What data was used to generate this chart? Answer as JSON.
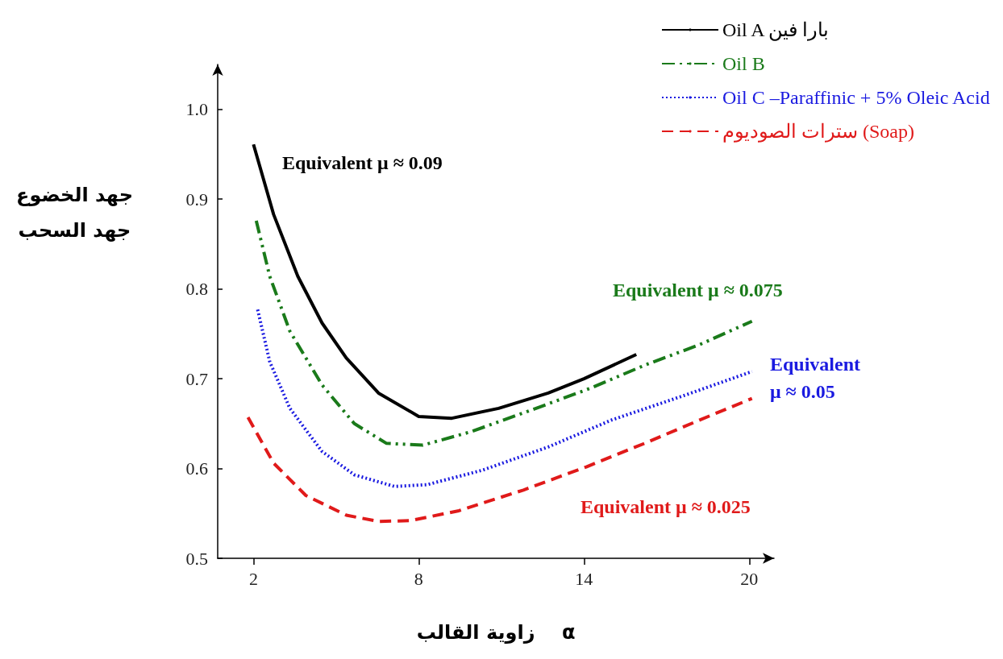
{
  "chart_data": {
    "type": "line",
    "xlabel": "زاوية القالب    α",
    "ylabel": "جهد الخضوع\nجهد السحب",
    "xlim": [
      0.7,
      20.9
    ],
    "ylim": [
      0.5,
      1.05
    ],
    "xticks": [
      2,
      8,
      14,
      20
    ],
    "yticks": [
      0.5,
      0.6,
      0.7,
      0.8,
      0.9,
      {
        "value": 1,
        "label": "1.0"
      }
    ],
    "grid": false,
    "legend": "top right",
    "marker": "none",
    "series": [
      {
        "name": "Oil A بارا فين",
        "color": "#000000",
        "line_style": "solid",
        "x": [
          2,
          2.73,
          3.61,
          4.49,
          5.37,
          6.54,
          8,
          9.2,
          10.9,
          12.7,
          14,
          15.9
        ],
        "values": [
          0.961,
          0.883,
          0.814,
          0.762,
          0.723,
          0.684,
          0.658,
          0.656,
          0.667,
          0.684,
          0.7,
          0.727
        ]
      },
      {
        "name": "Oil B",
        "color": "#1a7a1a",
        "line_style": "dashdot",
        "x": [
          2.1,
          2.59,
          3.32,
          4.49,
          5.66,
          6.83,
          8.15,
          9.9,
          11.9,
          14.2,
          16.2,
          18.2,
          20.1
        ],
        "values": [
          0.876,
          0.814,
          0.753,
          0.693,
          0.65,
          0.628,
          0.626,
          0.641,
          0.663,
          0.689,
          0.715,
          0.738,
          0.764
        ]
      },
      {
        "name": "Oil C –Paraffinic + 5% Oleic Acid",
        "color": "#1a1ae0",
        "line_style": "dotted",
        "x": [
          2.15,
          2.59,
          3.32,
          4.49,
          5.66,
          7.12,
          8.3,
          10.3,
          12.7,
          15,
          17.7,
          20.1
        ],
        "values": [
          0.777,
          0.719,
          0.667,
          0.619,
          0.593,
          0.58,
          0.582,
          0.598,
          0.624,
          0.654,
          0.682,
          0.708
        ]
      },
      {
        "name": "سترات الصوديوم (Soap)",
        "color": "#e01a1a",
        "line_style": "dashed",
        "x": [
          1.8,
          2.73,
          3.9,
          5.37,
          6.54,
          7.7,
          9.46,
          11.8,
          14.1,
          16.2,
          18.2,
          20.1
        ],
        "values": [
          0.657,
          0.606,
          0.57,
          0.548,
          0.541,
          0.542,
          0.553,
          0.576,
          0.602,
          0.628,
          0.654,
          0.678
        ]
      }
    ],
    "annotations": [
      "Equivalent μ ≈ 0.09",
      "Equivalent μ ≈ 0.075",
      "Equivalent\nμ ≈ 0.05",
      "Equivalent μ ≈ 0.025"
    ]
  }
}
